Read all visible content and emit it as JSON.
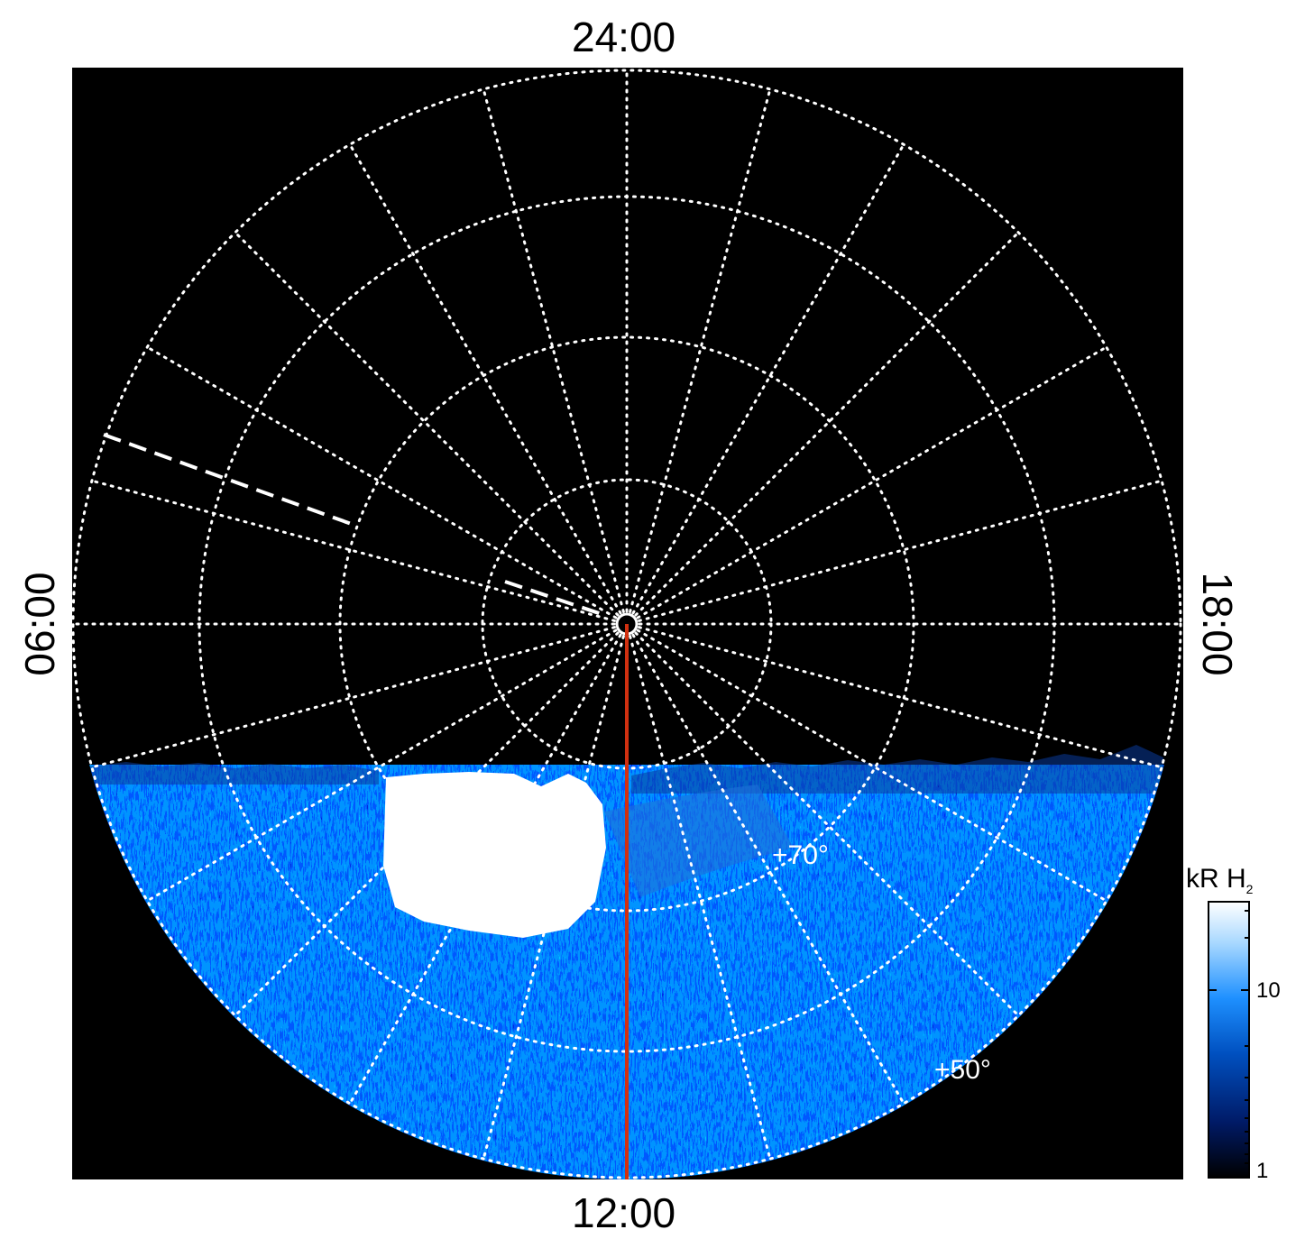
{
  "image": {
    "labels": {
      "top": "24:00",
      "bottom": "12:00",
      "left": "06:00",
      "right": "18:00"
    },
    "latitude_labels": [
      "+70°",
      "+50°"
    ],
    "colorbar": {
      "title": "kR H",
      "title_subscript": "2",
      "ticks": [
        "10",
        "1"
      ],
      "colors": [
        "#000000",
        "#001a66",
        "#0050c0",
        "#1e90ff",
        "#a8d8ff",
        "#ffffff"
      ]
    },
    "colors": {
      "background": "#000000",
      "grid": "#ffffff",
      "meridian_line": "#d03010"
    }
  }
}
